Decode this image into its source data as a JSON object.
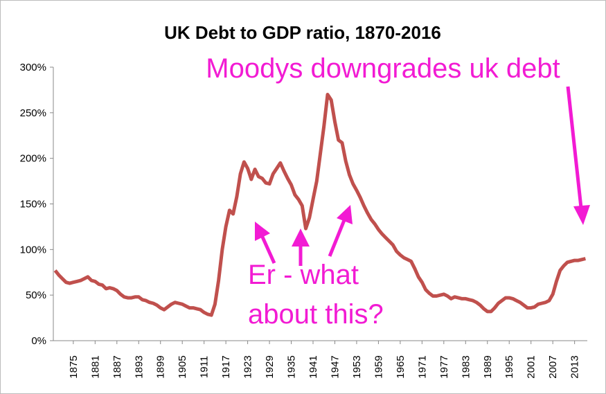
{
  "chart_data": {
    "type": "line",
    "title": "UK Debt to GDP ratio, 1870-2016",
    "x": [
      1870,
      1871,
      1872,
      1873,
      1874,
      1875,
      1876,
      1877,
      1878,
      1879,
      1880,
      1881,
      1882,
      1883,
      1884,
      1885,
      1886,
      1887,
      1888,
      1889,
      1890,
      1891,
      1892,
      1893,
      1894,
      1895,
      1896,
      1897,
      1898,
      1899,
      1900,
      1901,
      1902,
      1903,
      1904,
      1905,
      1906,
      1907,
      1908,
      1909,
      1910,
      1911,
      1912,
      1913,
      1914,
      1915,
      1916,
      1917,
      1918,
      1919,
      1920,
      1921,
      1922,
      1923,
      1924,
      1925,
      1926,
      1927,
      1928,
      1929,
      1930,
      1931,
      1932,
      1933,
      1934,
      1935,
      1936,
      1937,
      1938,
      1939,
      1940,
      1941,
      1942,
      1943,
      1944,
      1945,
      1946,
      1947,
      1948,
      1949,
      1950,
      1951,
      1952,
      1953,
      1954,
      1955,
      1956,
      1957,
      1958,
      1959,
      1960,
      1961,
      1962,
      1963,
      1964,
      1965,
      1966,
      1967,
      1968,
      1969,
      1970,
      1971,
      1972,
      1973,
      1974,
      1975,
      1976,
      1977,
      1978,
      1979,
      1980,
      1981,
      1982,
      1983,
      1984,
      1985,
      1986,
      1987,
      1988,
      1989,
      1990,
      1991,
      1992,
      1993,
      1994,
      1995,
      1996,
      1997,
      1998,
      1999,
      2000,
      2001,
      2002,
      2003,
      2004,
      2005,
      2006,
      2007,
      2008,
      2009,
      2010,
      2011,
      2012,
      2013,
      2014,
      2015,
      2016
    ],
    "series": [
      {
        "color": "#c0504d",
        "values": [
          77,
          72,
          68,
          64,
          63,
          64,
          65,
          66,
          68,
          70,
          66,
          65,
          62,
          61,
          57,
          58,
          57,
          55,
          51,
          48,
          47,
          47,
          48,
          48,
          45,
          44,
          42,
          41,
          39,
          36,
          34,
          37,
          40,
          42,
          41,
          40,
          38,
          36,
          36,
          35,
          34,
          31,
          29,
          28,
          40,
          66,
          100,
          125,
          143,
          139,
          158,
          183,
          196,
          189,
          177,
          188,
          180,
          178,
          173,
          172,
          183,
          189,
          195,
          186,
          178,
          171,
          160,
          155,
          148,
          123,
          135,
          155,
          175,
          205,
          235,
          270,
          264,
          240,
          220,
          217,
          197,
          182,
          172,
          165,
          157,
          148,
          140,
          133,
          128,
          122,
          117,
          113,
          109,
          105,
          98,
          94,
          91,
          89,
          87,
          79,
          70,
          64,
          56,
          52,
          49,
          49,
          50,
          51,
          49,
          46,
          48,
          47,
          46,
          46,
          45,
          44,
          42,
          39,
          35,
          32,
          32,
          36,
          41,
          44,
          47,
          47,
          46,
          44,
          42,
          39,
          36,
          36,
          37,
          40,
          41,
          42,
          44,
          51,
          65,
          77,
          82,
          86,
          87,
          88,
          88,
          89,
          90
        ]
      }
    ],
    "xlim": [
      1869.5,
      2016.5
    ],
    "xticks": [
      1875,
      1881,
      1887,
      1893,
      1899,
      1905,
      1911,
      1917,
      1923,
      1929,
      1935,
      1941,
      1947,
      1953,
      1959,
      1965,
      1971,
      1977,
      1983,
      1989,
      1995,
      2001,
      2007,
      2013
    ],
    "ylim": [
      0,
      300
    ],
    "yticks": [
      {
        "value": 0,
        "label": "0%"
      },
      {
        "value": 50,
        "label": "50%"
      },
      {
        "value": 100,
        "label": "100%"
      },
      {
        "value": 150,
        "label": "150%"
      },
      {
        "value": 200,
        "label": "200%"
      },
      {
        "value": 250,
        "label": "250%"
      },
      {
        "value": 300,
        "label": "300%"
      }
    ],
    "grid": false,
    "annotations": [
      {
        "lines": [
          "Moodys downgrades uk debt"
        ]
      },
      {
        "lines": [
          "Er - what",
          "about this?"
        ]
      }
    ]
  }
}
